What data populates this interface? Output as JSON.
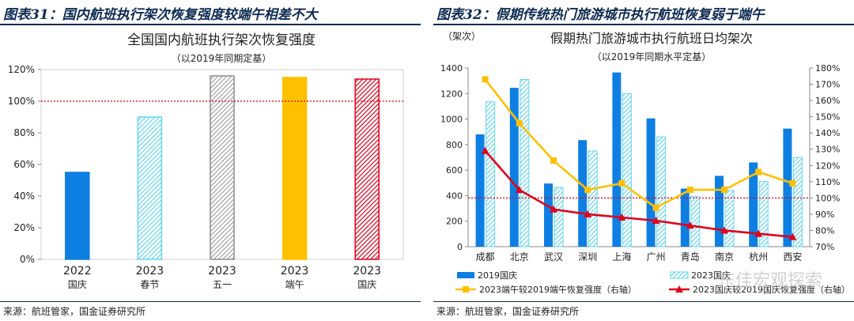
{
  "left": {
    "figure_title": "图表31：国内航班执行架次恢复强度较端午相差不大",
    "source": "来源：航班管家，国金证券研究所",
    "chart_data": {
      "type": "bar",
      "title": "全国国内航班执行架次恢复强度",
      "subtitle": "（以2019年同期定基）",
      "categories": [
        {
          "year": "2022",
          "holiday": "国庆"
        },
        {
          "year": "2023",
          "holiday": "春节"
        },
        {
          "year": "2023",
          "holiday": "五一"
        },
        {
          "year": "2023",
          "holiday": "端午"
        },
        {
          "year": "2023",
          "holiday": "国庆"
        }
      ],
      "values": [
        0.55,
        0.9,
        1.16,
        1.15,
        1.14
      ],
      "bar_styles": [
        "solid-blue",
        "light-cyan-hatched",
        "grey-hatched",
        "solid-orange",
        "red-hatched"
      ],
      "colors": [
        "#0e7fe2",
        "#66d6ef",
        "#8c8c8c",
        "#ffc000",
        "#e0001b"
      ],
      "ylim": [
        0,
        1.2
      ],
      "yticks": [
        "0%",
        "20%",
        "40%",
        "60%",
        "80%",
        "100%",
        "120%"
      ],
      "reference_line": 1.0,
      "reference_color": "#e0001b",
      "grid": false
    }
  },
  "right": {
    "figure_title": "图表32：假期传统热门旅游城市执行航班恢复弱于端午",
    "source": "来源：航班管家，国金证券研究所",
    "watermark": "东佳宏观探索",
    "chart_data": {
      "type": "bar",
      "title": "假期热门旅游城市执行航班日均架次",
      "subtitle": "（以2019年同期水平定基）",
      "ylabel": "（架次）",
      "categories": [
        "成都",
        "北京",
        "武汉",
        "深圳",
        "上海",
        "广州",
        "青岛",
        "南京",
        "杭州",
        "西安"
      ],
      "ylim": [
        0,
        1400
      ],
      "yticks": [
        "0",
        "200",
        "400",
        "600",
        "800",
        "1000",
        "1200",
        "1400"
      ],
      "y2lim": [
        0.7,
        1.8
      ],
      "y2ticks": [
        "70%",
        "80%",
        "90%",
        "100%",
        "110%",
        "120%",
        "130%",
        "140%",
        "150%",
        "160%",
        "170%",
        "180%"
      ],
      "reference_line": 1.0,
      "reference_color": "#e0001b",
      "series": [
        {
          "name": "2019国庆",
          "kind": "bar",
          "style": "solid",
          "color": "#0e7fe2",
          "values": [
            880,
            1245,
            495,
            835,
            1365,
            1005,
            455,
            555,
            660,
            925
          ]
        },
        {
          "name": "2023国庆",
          "kind": "bar",
          "style": "hatched",
          "color": "#66d6ef",
          "values": [
            1135,
            1310,
            465,
            750,
            1200,
            860,
            395,
            440,
            510,
            700
          ]
        },
        {
          "name": "2023端午较2019端午恢复强度（右轴）",
          "kind": "line",
          "axis": "right",
          "color": "#ffc000",
          "values": [
            1.73,
            1.46,
            1.23,
            1.05,
            1.09,
            0.94,
            1.05,
            1.05,
            1.16,
            1.09
          ]
        },
        {
          "name": "2023国庆较2019国庆恢复强度（右轴）",
          "kind": "line",
          "axis": "right",
          "color": "#e0001b",
          "values": [
            1.29,
            1.05,
            0.93,
            0.9,
            0.88,
            0.86,
            0.83,
            0.8,
            0.78,
            0.76
          ]
        }
      ],
      "legend_placement": "bottom"
    }
  }
}
